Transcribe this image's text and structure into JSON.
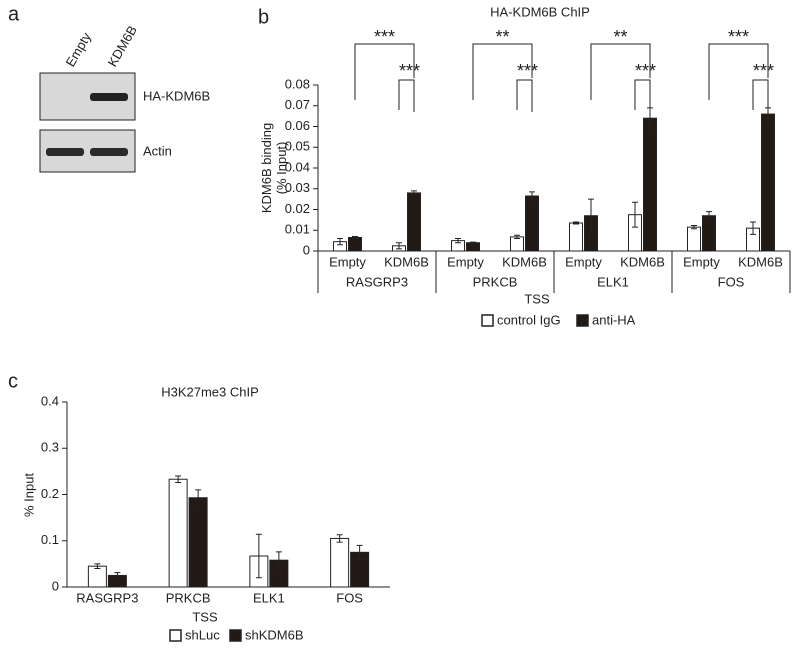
{
  "blot": {
    "panel_label": "a",
    "lanes": [
      "Empty",
      "KDM6B"
    ],
    "rows": [
      "HA-KDM6B",
      "Actin"
    ]
  },
  "chart_data": [
    {
      "type": "bar",
      "panel_label": "b",
      "title": "HA-KDM6B ChIP",
      "y_label": [
        "KDM6B binding",
        "(% Input)"
      ],
      "x_label": "TSS",
      "groups": [
        "RASGRP3",
        "PRKCB",
        "ELK1",
        "FOS"
      ],
      "categories": [
        "Empty",
        "KDM6B",
        "Empty",
        "KDM6B",
        "Empty",
        "KDM6B",
        "Empty",
        "KDM6B"
      ],
      "series": [
        {
          "name": "control IgG",
          "color": "#ffffff",
          "values": [
            0.0045,
            0.0025,
            0.005,
            0.0068,
            0.0135,
            0.0175,
            0.0115,
            0.011
          ],
          "errors": [
            0.0015,
            0.0015,
            0.001,
            0.0008,
            0.0005,
            0.006,
            0.0008,
            0.003
          ]
        },
        {
          "name": "anti-HA",
          "color": "#231a15",
          "values": [
            0.0065,
            0.028,
            0.004,
            0.0265,
            0.017,
            0.064,
            0.017,
            0.066
          ],
          "errors": [
            0.0005,
            0.001,
            0.0003,
            0.002,
            0.008,
            0.005,
            0.002,
            0.003
          ]
        }
      ],
      "significance": [
        [
          "***",
          "***"
        ],
        [
          "**",
          "***"
        ],
        [
          "**",
          "***"
        ],
        [
          "***",
          "***"
        ]
      ],
      "ylim": [
        0,
        0.08
      ],
      "yticks": [
        0,
        0.01,
        0.02,
        0.03,
        0.04,
        0.05,
        0.06,
        0.07,
        0.08
      ]
    },
    {
      "type": "bar",
      "panel_label": "c",
      "title": "H3K27me3  ChIP",
      "y_label": [
        "% Input"
      ],
      "x_label": "TSS",
      "categories": [
        "RASGRP3",
        "PRKCB",
        "ELK1",
        "FOS"
      ],
      "series": [
        {
          "name": "shLuc",
          "color": "#ffffff",
          "values": [
            0.045,
            0.233,
            0.067,
            0.105
          ],
          "errors": [
            0.005,
            0.007,
            0.047,
            0.008
          ]
        },
        {
          "name": "shKDM6B",
          "color": "#231a15",
          "values": [
            0.025,
            0.193,
            0.058,
            0.075
          ],
          "errors": [
            0.006,
            0.017,
            0.018,
            0.015
          ]
        }
      ],
      "ylim": [
        0,
        0.4
      ],
      "yticks": [
        0,
        0.1,
        0.2,
        0.3,
        0.4
      ]
    }
  ]
}
